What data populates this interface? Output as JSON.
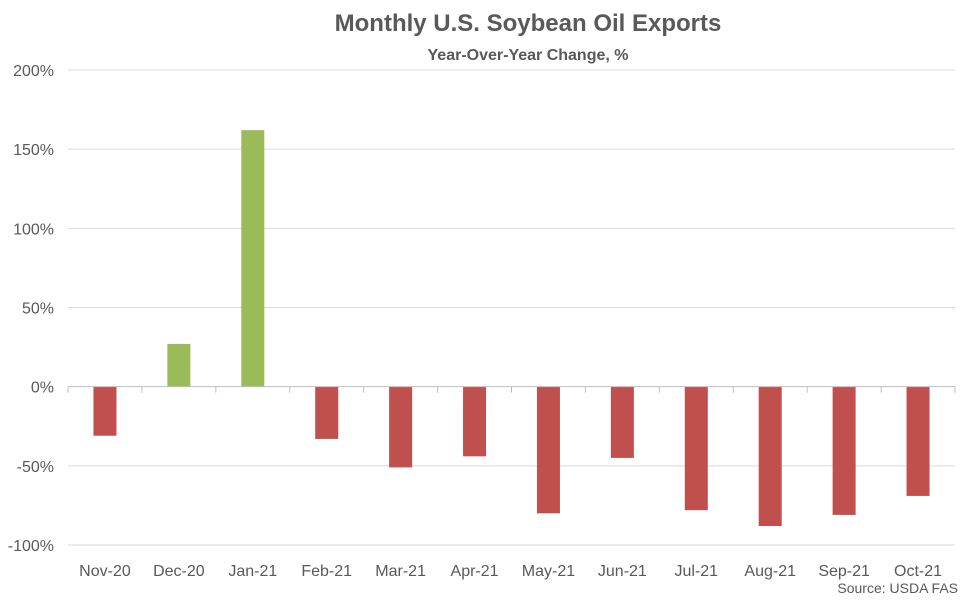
{
  "chart_data": {
    "type": "bar",
    "title": "Monthly U.S. Soybean Oil Exports",
    "subtitle": "Year-Over-Year Change, %",
    "source": "Source: USDA FAS",
    "categories": [
      "Nov-20",
      "Dec-20",
      "Jan-21",
      "Feb-21",
      "Mar-21",
      "Apr-21",
      "May-21",
      "Jun-21",
      "Jul-21",
      "Aug-21",
      "Sep-21",
      "Oct-21"
    ],
    "values": [
      -31,
      27,
      162,
      -33,
      -51,
      -44,
      -80,
      -45,
      -78,
      -88,
      -81,
      -69
    ],
    "ylim": [
      -100,
      200
    ],
    "yticks": [
      -100,
      -50,
      0,
      50,
      100,
      150,
      200
    ],
    "ytick_suffix": "%",
    "grid": true,
    "colors": {
      "positive": "#9bbb59",
      "negative": "#c0504d"
    }
  }
}
